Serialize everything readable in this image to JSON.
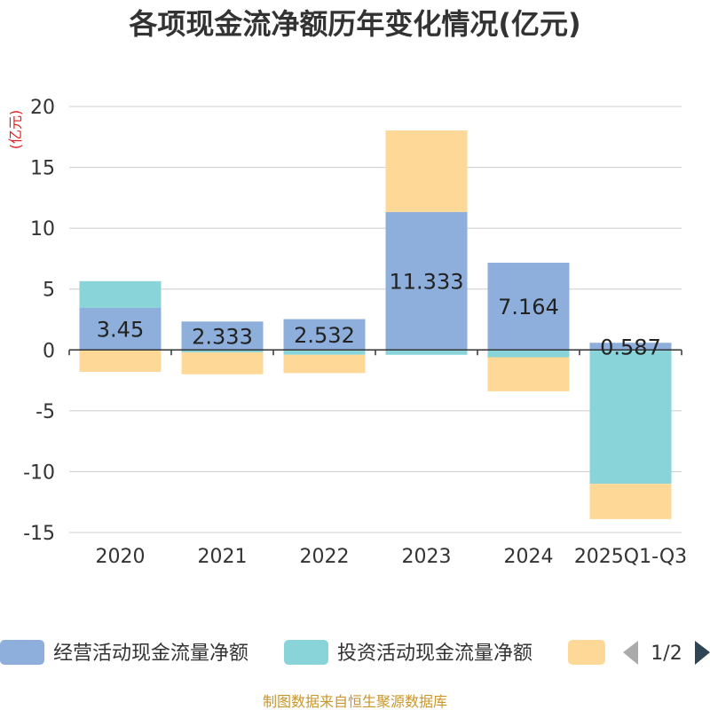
{
  "chart_data": {
    "type": "bar",
    "stacked": true,
    "title": "各项现金流净额历年变化情况(亿元)",
    "ylabel": "(亿元)",
    "ylim": [
      -15,
      20
    ],
    "yticks": [
      20,
      15,
      10,
      5,
      0,
      -5,
      -10,
      -15
    ],
    "ytick_labels": [
      "20",
      "15",
      "10",
      "5",
      "0",
      "-5",
      "-10",
      "-15"
    ],
    "categories": [
      "2020",
      "2021",
      "2022",
      "2023",
      "2024",
      "2025Q1-Q3"
    ],
    "series": [
      {
        "name": "经营活动现金流量净额",
        "color": "#8eaedb",
        "values": [
          3.45,
          2.333,
          2.532,
          11.333,
          7.164,
          0.587
        ],
        "labels": [
          "3.45",
          "2.333",
          "2.532",
          "11.333",
          "7.164",
          "0.587"
        ]
      },
      {
        "name": "投资活动现金流量净额",
        "color": "#88d4d8",
        "values": [
          2.2,
          -0.2,
          -0.4,
          -0.4,
          -0.6,
          -11.0
        ]
      },
      {
        "name": "",
        "color": "#fed897",
        "values": [
          -1.8,
          -1.8,
          -1.5,
          6.7,
          -2.8,
          -2.9
        ]
      }
    ],
    "grid": true,
    "legend": {
      "position": "bottom",
      "page": "1/2"
    }
  },
  "footer": {
    "source": "制图数据来自恒生聚源数据库"
  }
}
